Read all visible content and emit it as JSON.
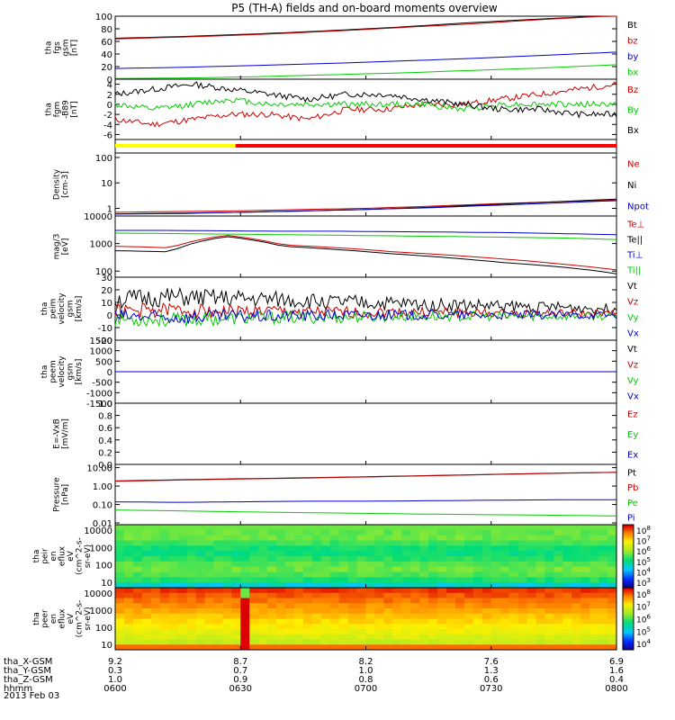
{
  "title": "P5 (TH-A) fields and on-board moments overview",
  "date_label": "2013 Feb 03",
  "colors": {
    "black": "#000000",
    "red": "#cc0000",
    "green": "#00cc00",
    "blue": "#0000cc",
    "yellow": "#ffff00",
    "redbar": "#ff0000"
  },
  "chart_data": [
    {
      "type": "line",
      "ylabel": [
        "tha",
        "fgs",
        "gsm",
        "[nT]"
      ],
      "ylim": [
        0,
        100
      ],
      "ticks": [
        "0",
        "20",
        "40",
        "60",
        "80",
        "100"
      ],
      "series": [
        {
          "name": "Bt",
          "color": "black",
          "values": [
            65,
            68,
            72,
            77,
            83,
            90,
            96,
            101
          ]
        },
        {
          "name": "bz",
          "color": "red",
          "values": [
            64,
            67,
            71,
            76,
            82,
            88,
            95,
            101
          ]
        },
        {
          "name": "by",
          "color": "blue",
          "values": [
            17,
            19,
            22,
            25,
            29,
            33,
            38,
            43
          ]
        },
        {
          "name": "bx",
          "color": "green",
          "values": [
            1,
            2,
            4,
            7,
            10,
            14,
            18,
            23
          ]
        }
      ]
    },
    {
      "type": "line",
      "ylabel": [
        "tha",
        "fgm",
        "-B89",
        "[nT]"
      ],
      "ylim": [
        -7,
        5
      ],
      "ticks": [
        "-6",
        "-4",
        "-2",
        "0",
        "2",
        "4"
      ],
      "series": [
        {
          "name": "Bz",
          "color": "red",
          "values": [
            -3,
            -4,
            -3,
            -2,
            -2,
            -3,
            -1,
            -1,
            0,
            0,
            1,
            2,
            3,
            4
          ]
        },
        {
          "name": "By",
          "color": "green",
          "values": [
            0,
            -1,
            0,
            1,
            0,
            0,
            0,
            0,
            0,
            -1,
            0,
            0,
            0,
            0
          ]
        },
        {
          "name": "Bx",
          "color": "black",
          "values": [
            2,
            3,
            4,
            3,
            2,
            1,
            2,
            2,
            1,
            0,
            -1,
            -1,
            -2,
            -2
          ]
        }
      ]
    },
    {
      "type": "bar",
      "name": "mode",
      "segments": [
        {
          "color": "yellow",
          "from": 0,
          "to": 0.24
        },
        {
          "color": "redbar",
          "from": 0.24,
          "to": 1
        }
      ]
    },
    {
      "type": "line",
      "scale": "log",
      "ylabel": [
        "Density",
        "[cm-3]"
      ],
      "ylim": [
        0.5,
        150
      ],
      "ticks": [
        "1",
        "10",
        "100"
      ],
      "series": [
        {
          "name": "Ne",
          "color": "red",
          "values": [
            0.7,
            0.75,
            0.8,
            0.9,
            1.0,
            1.2,
            1.5,
            1.8,
            2.1
          ]
        },
        {
          "name": "Ni",
          "color": "black",
          "values": [
            0.6,
            0.65,
            0.7,
            0.8,
            0.9,
            1.1,
            1.4,
            1.8,
            2.3
          ]
        },
        {
          "name": "Npot",
          "color": "blue",
          "values": [
            0.6,
            0.62,
            0.7,
            0.78,
            0.9,
            1.05,
            1.3,
            1.6,
            2.0
          ]
        }
      ]
    },
    {
      "type": "line",
      "scale": "log",
      "ylabel": [
        "mag/3",
        "[eV]"
      ],
      "ylim": [
        60,
        10000
      ],
      "ticks": [
        "100",
        "1000",
        "10000"
      ],
      "series": [
        {
          "name": "Te⊥",
          "color": "red",
          "values": [
            800,
            700,
            2000,
            900,
            700,
            500,
            380,
            270,
            180,
            110
          ]
        },
        {
          "name": "Te||",
          "color": "black",
          "values": [
            550,
            500,
            1800,
            800,
            600,
            420,
            300,
            200,
            140,
            80
          ]
        },
        {
          "name": "Ti⊥",
          "color": "blue",
          "values": [
            3000,
            3000,
            2900,
            2800,
            2800,
            2700,
            2600,
            2500,
            2300,
            2100
          ]
        },
        {
          "name": "Ti||",
          "color": "green",
          "values": [
            2400,
            2300,
            2200,
            2100,
            2000,
            1900,
            1800,
            1700,
            1600,
            1400
          ]
        }
      ]
    },
    {
      "type": "line",
      "ylabel": [
        "tha",
        "peim",
        "velocity",
        "gsm",
        "[km/s]"
      ],
      "ylim": [
        -20,
        30
      ],
      "ticks": [
        "-20",
        "-10",
        "0",
        "10",
        "20",
        "30"
      ],
      "series": [
        {
          "name": "Vt",
          "color": "black",
          "values": [
            12,
            14,
            13,
            12,
            10,
            9,
            8,
            7,
            6,
            5
          ]
        },
        {
          "name": "Vz",
          "color": "red",
          "values": [
            3,
            4,
            3,
            3,
            2,
            2,
            2,
            1,
            1,
            1
          ]
        },
        {
          "name": "Vy",
          "color": "green",
          "values": [
            -3,
            -4,
            -3,
            -2,
            -2,
            -1,
            -1,
            -1,
            -1,
            -1
          ]
        },
        {
          "name": "Vx",
          "color": "blue",
          "values": [
            -1,
            -2,
            -1,
            -1,
            0,
            0,
            0,
            0,
            0,
            0
          ]
        }
      ]
    },
    {
      "type": "line",
      "ylabel": [
        "tha",
        "peem",
        "velocity",
        "gsm",
        "[km/s]"
      ],
      "ylim": [
        -1500,
        1500
      ],
      "ticks": [
        "-1500",
        "-1000",
        "-500",
        "0",
        "500",
        "1000",
        "1500"
      ],
      "series": [
        {
          "name": "Vt",
          "color": "black",
          "values": [
            0,
            0,
            0,
            0,
            0,
            0,
            0,
            0
          ]
        },
        {
          "name": "Vz",
          "color": "red",
          "values": [
            0,
            0,
            0,
            0,
            0,
            0,
            0,
            0
          ]
        },
        {
          "name": "Vy",
          "color": "green",
          "values": [
            0,
            0,
            0,
            0,
            0,
            0,
            0,
            0
          ]
        },
        {
          "name": "Vx",
          "color": "blue",
          "values": [
            0,
            0,
            0,
            0,
            0,
            0,
            0,
            0
          ]
        }
      ]
    },
    {
      "type": "line",
      "ylabel": [
        "E=-VxB",
        "[mV/m]"
      ],
      "ylim": [
        0,
        1
      ],
      "ticks": [
        "0.0",
        "0.2",
        "0.4",
        "0.6",
        "0.8",
        "1.0"
      ],
      "series": [
        {
          "name": "Ez",
          "color": "red",
          "values": []
        },
        {
          "name": "Ey",
          "color": "green",
          "values": []
        },
        {
          "name": "Ex",
          "color": "blue",
          "values": []
        }
      ]
    },
    {
      "type": "line",
      "scale": "log",
      "ylabel": [
        "Pressure",
        "[nPa]"
      ],
      "ylim": [
        0.008,
        15
      ],
      "ticks": [
        "0.01",
        "0.10",
        "1.00",
        "10.00"
      ],
      "series": [
        {
          "name": "Pt",
          "color": "black",
          "values": [
            1.9,
            2.2,
            2.5,
            2.8,
            3.2,
            3.7,
            4.3,
            5.0,
            5.6
          ]
        },
        {
          "name": "Pb",
          "color": "red",
          "values": [
            1.8,
            2.1,
            2.4,
            2.7,
            3.1,
            3.6,
            4.2,
            4.9,
            5.5
          ]
        },
        {
          "name": "Pe",
          "color": "green",
          "values": [
            0.05,
            0.045,
            0.04,
            0.036,
            0.033,
            0.03,
            0.028,
            0.026,
            0.024
          ]
        },
        {
          "name": "Pi",
          "color": "blue",
          "values": [
            0.14,
            0.13,
            0.14,
            0.15,
            0.15,
            0.16,
            0.17,
            0.18,
            0.18
          ]
        }
      ]
    },
    {
      "type": "heatmap",
      "ylabel": [
        "tha",
        "peir",
        "en",
        "eflux",
        "eV",
        "(cm^2-s-",
        "sr-eV)"
      ],
      "scale": "log",
      "ylim": [
        5,
        20000
      ],
      "ticks": [
        "10",
        "100",
        "1000",
        "10000"
      ],
      "colorbar": {
        "ticks": [
          "10^3",
          "10^4",
          "10^5",
          "10^6",
          "10^7",
          "10^8"
        ]
      }
    },
    {
      "type": "heatmap",
      "ylabel": [
        "tha",
        "peer",
        "en",
        "eflux",
        "eV",
        "(cm^2-s-",
        "sr-eV)"
      ],
      "scale": "log",
      "ylim": [
        5,
        20000
      ],
      "ticks": [
        "10",
        "100",
        "1000",
        "10000"
      ],
      "colorbar": {
        "ticks": [
          "10^4",
          "10^5",
          "10^6",
          "10^7",
          "10^8"
        ]
      }
    }
  ],
  "x_axis": {
    "row_labels": [
      "tha_X-GSM",
      "tha_Y-GSM",
      "tha_Z-GSM",
      "hhmm"
    ],
    "columns": [
      [
        "9.2",
        "0.3",
        "1.0",
        "0600"
      ],
      [
        "8.7",
        "0.7",
        "0.9",
        "0630"
      ],
      [
        "8.2",
        "1.0",
        "0.8",
        "0700"
      ],
      [
        "7.6",
        "1.3",
        "0.6",
        "0730"
      ],
      [
        "6.9",
        "1.6",
        "0.4",
        "0800"
      ]
    ]
  }
}
